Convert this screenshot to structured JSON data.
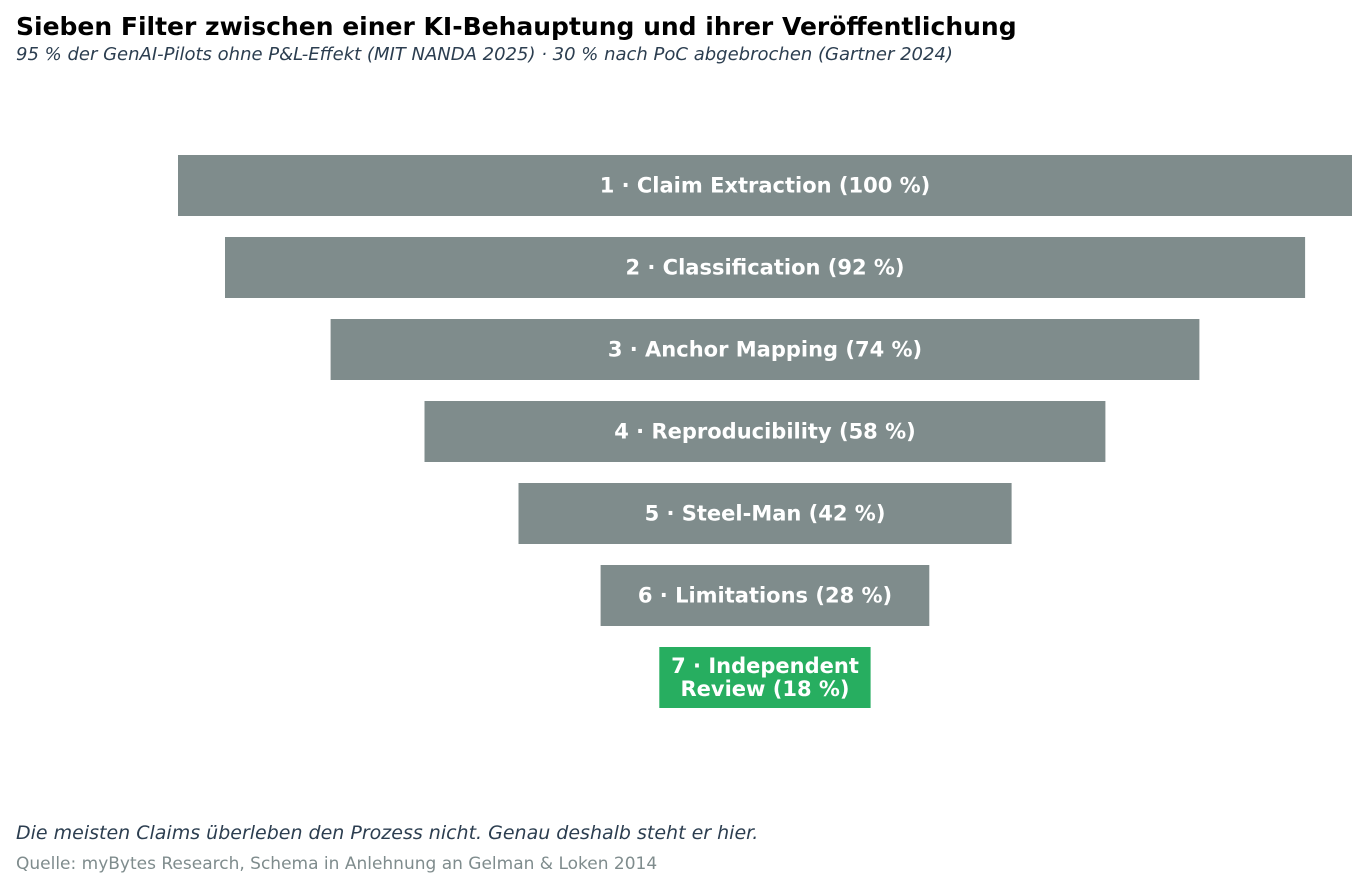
{
  "title": "Sieben Filter zwischen einer KI-Behauptung und ihrer Veröffentlichung",
  "subtitle": "95 % der GenAI-Pilots ohne P&L-Effekt (MIT NANDA 2025)  ·  30 % nach PoC abgebrochen (Gartner 2024)",
  "note": "Die meisten Claims überleben den Prozess nicht. Genau deshalb steht er hier.",
  "source": "Quelle: myBytes Research, Schema in Anlehnung an Gelman & Loken 2014",
  "colors": {
    "default_bar": "#7f8c8c",
    "highlight_bar": "#27ae60"
  },
  "chart_data": {
    "type": "bar",
    "orientation": "horizontal-funnel",
    "xlim": [
      0,
      100
    ],
    "grid": false,
    "categories": [
      "1 · Claim Extraction",
      "2 · Classification",
      "3 · Anchor Mapping",
      "4 · Reproducibility",
      "5 · Steel-Man",
      "6 · Limitations",
      "7 · Independent Review"
    ],
    "values": [
      100,
      92,
      74,
      58,
      42,
      28,
      18
    ],
    "labels": [
      [
        "1 · Claim Extraction  (100 %)"
      ],
      [
        "2 · Classification  (92 %)"
      ],
      [
        "3 · Anchor Mapping  (74 %)"
      ],
      [
        "4 · Reproducibility  (58 %)"
      ],
      [
        "5 · Steel-Man  (42 %)"
      ],
      [
        "6 · Limitations  (28 %)"
      ],
      [
        "7 · Independent",
        "Review  (18 %)"
      ]
    ],
    "highlight_index": 6
  }
}
